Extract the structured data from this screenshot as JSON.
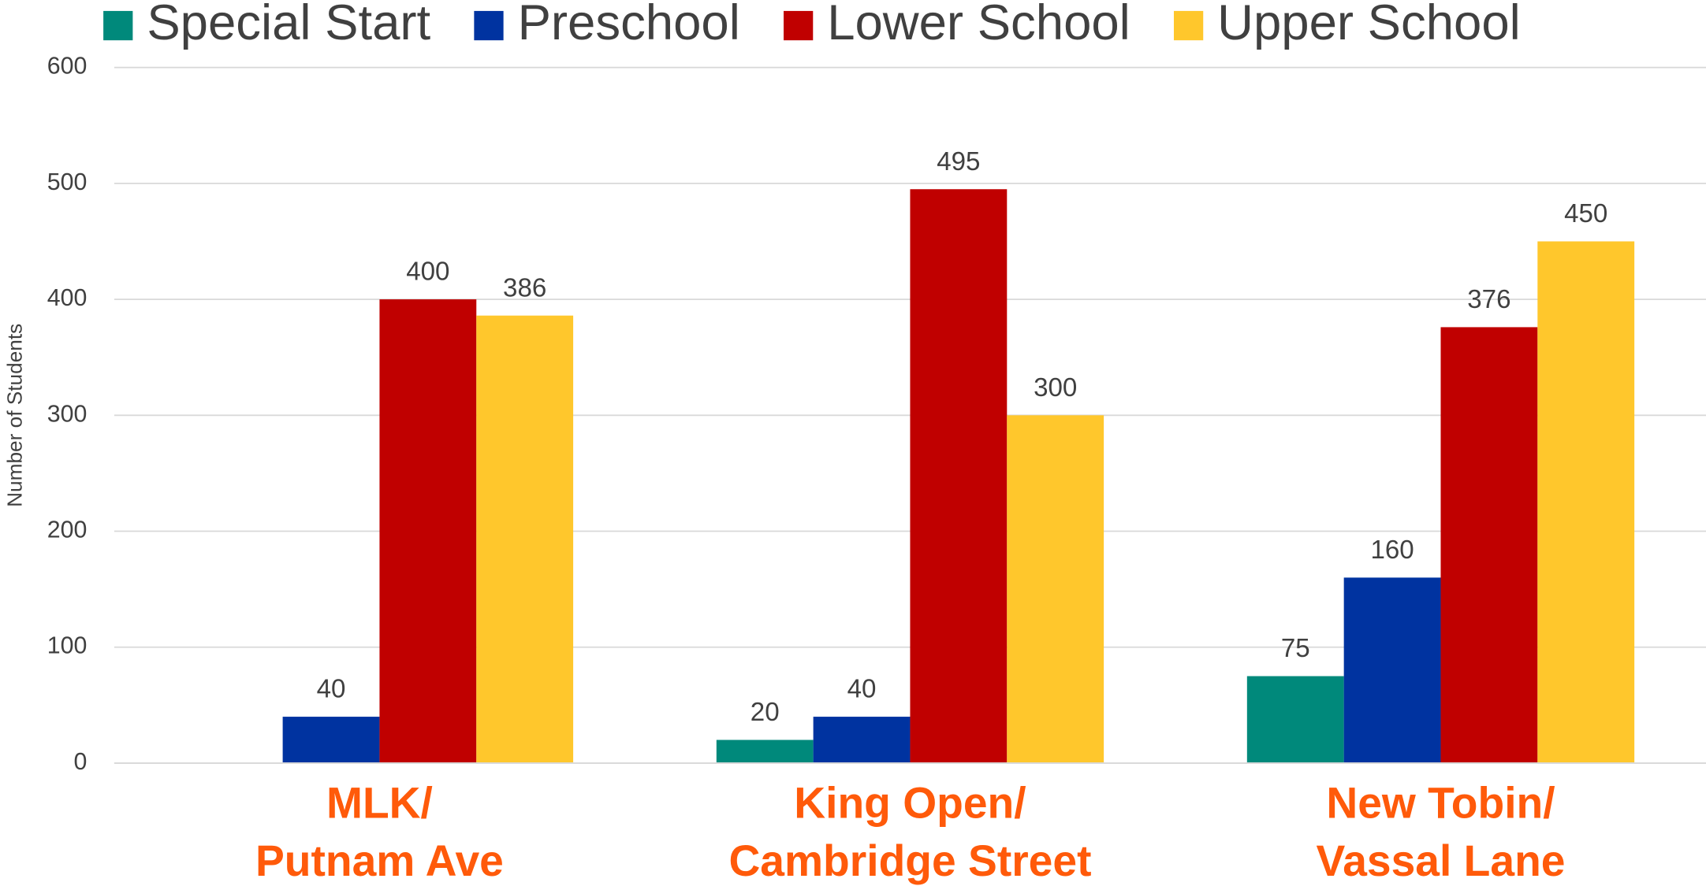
{
  "chart_data": {
    "type": "bar",
    "y_label": "Number of Students",
    "categories": [
      [
        "MLK/",
        "Putnam Ave"
      ],
      [
        "King Open/",
        "Cambridge Street"
      ],
      [
        "New Tobin/",
        "Vassal Lane"
      ]
    ],
    "series": [
      {
        "name": "Special Start",
        "color": "#00897b",
        "values": [
          null,
          20,
          75
        ]
      },
      {
        "name": "Preschool",
        "color": "#0033a0",
        "values": [
          40,
          40,
          160
        ]
      },
      {
        "name": "Lower School",
        "color": "#c00000",
        "values": [
          400,
          495,
          376
        ]
      },
      {
        "name": "Upper School",
        "color": "#ffc72c",
        "values": [
          386,
          300,
          450
        ]
      }
    ],
    "ylim": [
      0,
      600
    ],
    "yticks": [
      0,
      100,
      200,
      300,
      400,
      500,
      600
    ],
    "grid": true,
    "legend": "top"
  }
}
